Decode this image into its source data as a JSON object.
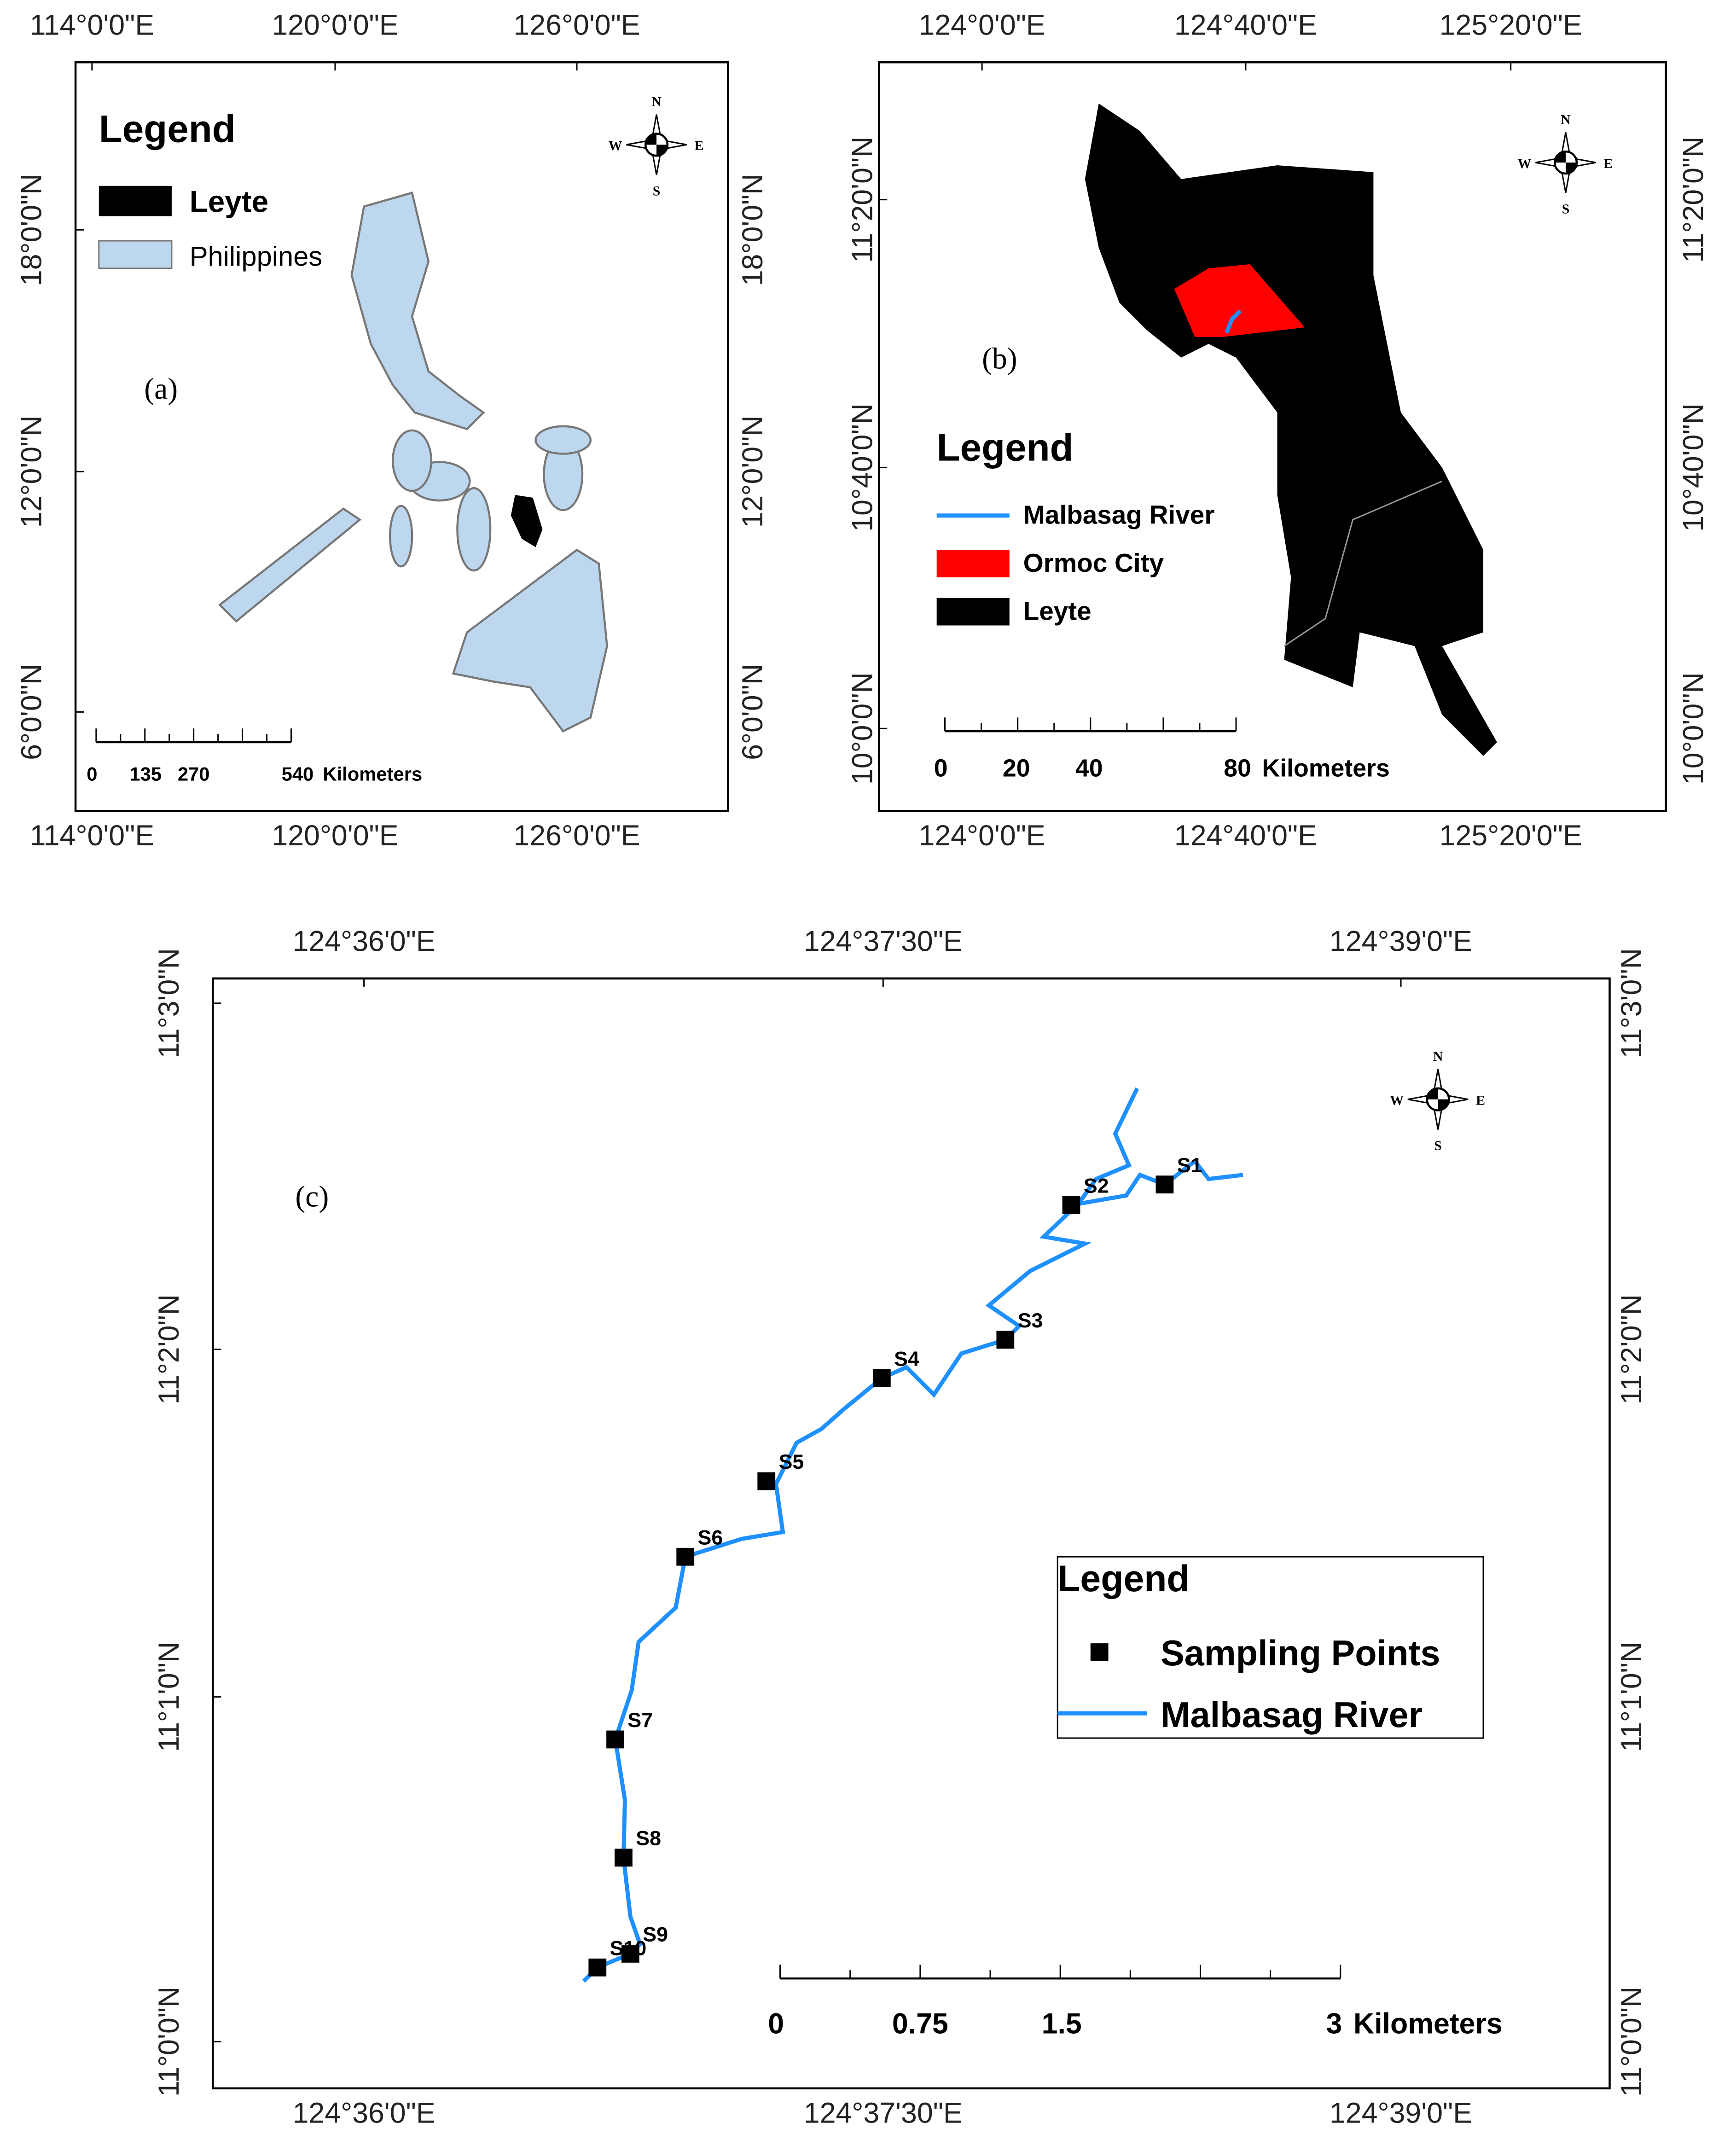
{
  "compass": [
    "N",
    "W",
    "E",
    "S"
  ],
  "panels": [
    {
      "label": "(a)",
      "x_ticks": [
        "114°0'0\"E",
        "120°0'0\"E",
        "126°0'0\"E"
      ],
      "y_ticks": [
        "18°0'0\"N",
        "12°0'0\"N",
        "6°0'0\"N"
      ],
      "legend_title": "Legend",
      "legend_items": [
        "Leyte",
        "Philippines"
      ],
      "scale_labels": [
        "0",
        "135",
        "270",
        "540"
      ],
      "scale_unit": "Kilometers"
    },
    {
      "label": "(b)",
      "x_ticks": [
        "124°0'0\"E",
        "124°40'0\"E",
        "125°20'0\"E"
      ],
      "y_ticks": [
        "11°20'0\"N",
        "10°40'0\"N",
        "10°0'0\"N"
      ],
      "legend_title": "Legend",
      "legend_items": [
        "Malbasag River",
        "Ormoc City",
        "Leyte"
      ],
      "scale_labels": [
        "0",
        "20",
        "40",
        "80"
      ],
      "scale_unit": "Kilometers"
    },
    {
      "label": "(c)",
      "x_ticks": [
        "124°36'0\"E",
        "124°37'30\"E",
        "124°39'0\"E"
      ],
      "y_ticks": [
        "11°3'0\"N",
        "11°2'0\"N",
        "11°1'0\"N",
        "11°0'0\"N"
      ],
      "legend_title": "Legend",
      "legend_items": [
        "Sampling Points",
        "Malbasag River"
      ],
      "scale_labels": [
        "0",
        "0.75",
        "1.5",
        "3"
      ],
      "scale_unit": "Kilometers",
      "sampling_points": [
        "S1",
        "S2",
        "S3",
        "S4",
        "S5",
        "S6",
        "S7",
        "S8",
        "S9",
        "S10"
      ]
    }
  ]
}
